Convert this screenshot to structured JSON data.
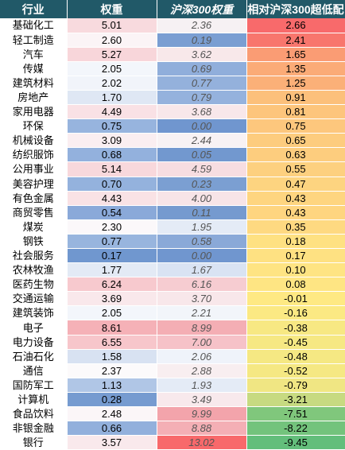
{
  "header": {
    "industry": "行业",
    "weight": "权重",
    "hs300_weight": "沪深300权重",
    "excess": "相对沪深300超低配"
  },
  "rows": [
    {
      "industry": "基础化工",
      "weight": "5.01",
      "hs300": "2.36",
      "excess": "2.66",
      "wcolor": "#f8dade",
      "hcolor": "#f6f1f3",
      "ecolor": "#f86a6b"
    },
    {
      "industry": "轻工制造",
      "weight": "2.60",
      "hs300": "0.19",
      "excess": "2.41",
      "wcolor": "#fbf4f6",
      "hcolor": "#7a9ed2",
      "ecolor": "#f8766d"
    },
    {
      "industry": "汽车",
      "weight": "5.27",
      "hs300": "3.62",
      "excess": "1.65",
      "wcolor": "#f8d6da",
      "hcolor": "#f8e8ea",
      "ecolor": "#fa9c74"
    },
    {
      "industry": "传媒",
      "weight": "2.05",
      "hs300": "0.69",
      "excess": "1.35",
      "wcolor": "#f3f6fb",
      "hcolor": "#90aedb",
      "ecolor": "#fbab77"
    },
    {
      "industry": "建筑材料",
      "weight": "2.02",
      "hs300": "0.77",
      "excess": "1.25",
      "wcolor": "#f1f4fa",
      "hcolor": "#94b1dc",
      "ecolor": "#fbb078"
    },
    {
      "industry": "房地产",
      "weight": "1.70",
      "hs300": "0.79",
      "excess": "0.91",
      "wcolor": "#dfe7f4",
      "hcolor": "#95b2dd",
      "ecolor": "#fcc07b"
    },
    {
      "industry": "家用电器",
      "weight": "4.49",
      "hs300": "3.68",
      "excess": "0.81",
      "wcolor": "#f9e1e5",
      "hcolor": "#f8e7ea",
      "ecolor": "#fdc57c"
    },
    {
      "industry": "环保",
      "weight": "0.75",
      "hs300": "0.00",
      "excess": "0.75",
      "wcolor": "#97b4de",
      "hcolor": "#7096cf",
      "ecolor": "#fdc77d"
    },
    {
      "industry": "机械设备",
      "weight": "3.09",
      "hs300": "2.44",
      "excess": "0.65",
      "wcolor": "#faeef1",
      "hcolor": "#f8f2f4",
      "ecolor": "#fdcc7e"
    },
    {
      "industry": "纺织服饰",
      "weight": "0.68",
      "hs300": "0.05",
      "excess": "0.63",
      "wcolor": "#93b1dd",
      "hcolor": "#7298cf",
      "ecolor": "#fdcd7e"
    },
    {
      "industry": "公用事业",
      "weight": "5.14",
      "hs300": "4.59",
      "excess": "0.55",
      "wcolor": "#f8d8dc",
      "hcolor": "#f7dde1",
      "ecolor": "#fdd07f"
    },
    {
      "industry": "美容护理",
      "weight": "0.70",
      "hs300": "0.23",
      "excess": "0.47",
      "wcolor": "#94b2dd",
      "hcolor": "#7b9fd2",
      "ecolor": "#fdd480"
    },
    {
      "industry": "有色金属",
      "weight": "4.43",
      "hs300": "4.00",
      "excess": "0.43",
      "wcolor": "#f9e2e5",
      "hcolor": "#f7e4e7",
      "ecolor": "#fed580"
    },
    {
      "industry": "商贸零售",
      "weight": "0.54",
      "hs300": "0.11",
      "excess": "0.43",
      "wcolor": "#8aa9d9",
      "hcolor": "#759acf",
      "ecolor": "#fed580"
    },
    {
      "industry": "煤炭",
      "weight": "2.30",
      "hs300": "1.95",
      "excess": "0.35",
      "wcolor": "#fbf8fa",
      "hcolor": "#e4ebf6",
      "ecolor": "#fed981"
    },
    {
      "industry": "钢铁",
      "weight": "0.77",
      "hs300": "0.58",
      "excess": "0.18",
      "wcolor": "#98b5de",
      "hcolor": "#8aa9d8",
      "ecolor": "#fee182"
    },
    {
      "industry": "社会服务",
      "weight": "0.17",
      "hs300": "0.00",
      "excess": "0.17",
      "wcolor": "#7097cf",
      "hcolor": "#7096cf",
      "ecolor": "#fee182"
    },
    {
      "industry": "农林牧渔",
      "weight": "1.77",
      "hs300": "1.67",
      "excess": "0.10",
      "wcolor": "#e3eaf5",
      "hcolor": "#d9e3f3",
      "ecolor": "#fee483"
    },
    {
      "industry": "医药生物",
      "weight": "6.24",
      "hs300": "6.16",
      "excess": "0.08",
      "wcolor": "#f7c9ce",
      "hcolor": "#f6ccd1",
      "ecolor": "#fee583"
    },
    {
      "industry": "交通运输",
      "weight": "3.69",
      "hs300": "3.70",
      "excess": "-0.01",
      "wcolor": "#f9e8eb",
      "hcolor": "#f8e7ea",
      "ecolor": "#fee983"
    },
    {
      "industry": "建筑装饰",
      "weight": "2.05",
      "hs300": "2.21",
      "excess": "-0.16",
      "wcolor": "#f3f6fb",
      "hcolor": "#f2f5fa",
      "ecolor": "#fbe983"
    },
    {
      "industry": "电子",
      "weight": "8.61",
      "hs300": "8.99",
      "excess": "-0.38",
      "wcolor": "#f5b1b7",
      "hcolor": "#f4aeb4",
      "ecolor": "#f7e883"
    },
    {
      "industry": "电力设备",
      "weight": "6.55",
      "hs300": "7.00",
      "excess": "-0.45",
      "wcolor": "#f7c6cb",
      "hcolor": "#f6c2c8",
      "ecolor": "#f6e883"
    },
    {
      "industry": "石油石化",
      "weight": "1.58",
      "hs300": "2.06",
      "excess": "-0.48",
      "wcolor": "#d8e2f2",
      "hcolor": "#eff3fa",
      "ecolor": "#f5e883"
    },
    {
      "industry": "通信",
      "weight": "2.37",
      "hs300": "2.88",
      "excess": "-0.52",
      "wcolor": "#fcfafb",
      "hcolor": "#f8eef0",
      "ecolor": "#f5e883"
    },
    {
      "industry": "国防军工",
      "weight": "1.13",
      "hs300": "1.93",
      "excess": "-0.79",
      "wcolor": "#b0c6e6",
      "hcolor": "#e4ebf6",
      "ecolor": "#f0e683"
    },
    {
      "industry": "计算机",
      "weight": "0.28",
      "hs300": "3.49",
      "excess": "-3.21",
      "wcolor": "#769bd0",
      "hcolor": "#f8e9ec",
      "ecolor": "#c7da81"
    },
    {
      "industry": "食品饮料",
      "weight": "2.48",
      "hs300": "9.99",
      "excess": "-7.51",
      "wcolor": "#fbf6f8",
      "hcolor": "#f3a4ab",
      "ecolor": "#80c77c"
    },
    {
      "industry": "非银金融",
      "weight": "0.66",
      "hs300": "8.88",
      "excess": "-8.22",
      "wcolor": "#92b0dc",
      "hcolor": "#f4afb5",
      "ecolor": "#73c37c"
    },
    {
      "industry": "银行",
      "weight": "3.57",
      "hs300": "13.02",
      "excess": "-9.45",
      "wcolor": "#f9e9ec",
      "hcolor": "#f8696b",
      "ecolor": "#63be7b"
    }
  ]
}
